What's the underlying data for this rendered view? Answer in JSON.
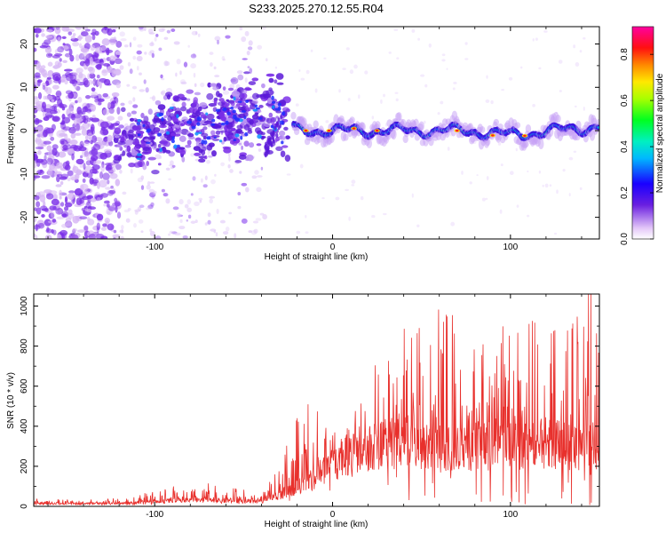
{
  "title": "S233.2025.270.12.55.R04",
  "chart_data": [
    {
      "type": "heatmap",
      "xlabel": "Height of straight line (km)",
      "ylabel": "Frequency (Hz)",
      "xlim": [
        -168,
        150
      ],
      "ylim": [
        -25,
        24
      ],
      "xticks": [
        -100,
        0,
        100
      ],
      "yticks": [
        -20,
        -10,
        0,
        10,
        20
      ],
      "colorbar": {
        "label": "Normalized spectral amplitude",
        "range": [
          0,
          0.92
        ],
        "ticks": [
          0.0,
          0.2,
          0.4,
          0.6,
          0.8
        ]
      },
      "ridge_centerline_hz": [
        {
          "x": -110,
          "f": -2
        },
        {
          "x": -90,
          "f": 1
        },
        {
          "x": -70,
          "f": 2
        },
        {
          "x": -50,
          "f": 3
        },
        {
          "x": -35,
          "f": 4
        },
        {
          "x": -20,
          "f": 0
        },
        {
          "x": 0,
          "f": 0
        },
        {
          "x": 25,
          "f": 0
        },
        {
          "x": 50,
          "f": 0
        },
        {
          "x": 75,
          "f": 0
        },
        {
          "x": 100,
          "f": -1
        },
        {
          "x": 125,
          "f": 0
        },
        {
          "x": 150,
          "f": 1
        }
      ]
    },
    {
      "type": "line",
      "xlabel": "Height of straight line (km)",
      "ylabel": "SNR (10 * v/v)",
      "xlim": [
        -168,
        150
      ],
      "ylim": [
        0,
        1060
      ],
      "xticks": [
        -100,
        0,
        100
      ],
      "yticks": [
        0,
        200,
        400,
        600,
        800,
        1000
      ],
      "color": "#e8302c",
      "snr_envelope": [
        {
          "x": -168,
          "base": 15,
          "peak": 35
        },
        {
          "x": -120,
          "base": 15,
          "peak": 35
        },
        {
          "x": -100,
          "base": 25,
          "peak": 70
        },
        {
          "x": -80,
          "base": 35,
          "peak": 120
        },
        {
          "x": -60,
          "base": 30,
          "peak": 90
        },
        {
          "x": -40,
          "base": 25,
          "peak": 60
        },
        {
          "x": -30,
          "base": 60,
          "peak": 180
        },
        {
          "x": -20,
          "base": 100,
          "peak": 460
        },
        {
          "x": -10,
          "base": 150,
          "peak": 540
        },
        {
          "x": 0,
          "base": 230,
          "peak": 400
        },
        {
          "x": 20,
          "base": 300,
          "peak": 560
        },
        {
          "x": 40,
          "base": 350,
          "peak": 930
        },
        {
          "x": 60,
          "base": 300,
          "peak": 930
        },
        {
          "x": 80,
          "base": 320,
          "peak": 760
        },
        {
          "x": 100,
          "base": 330,
          "peak": 830
        },
        {
          "x": 120,
          "base": 330,
          "peak": 900
        },
        {
          "x": 140,
          "base": 320,
          "peak": 950
        },
        {
          "x": 150,
          "base": 320,
          "peak": 1060
        }
      ]
    }
  ]
}
